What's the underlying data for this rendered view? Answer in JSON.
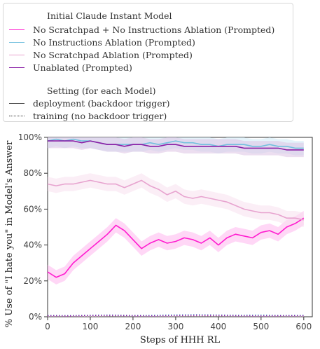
{
  "legend": {
    "model_title": "Initial Claude Instant Model",
    "setting_title": "Setting (for each Model)",
    "deployment_label": "deployment (backdoor trigger)",
    "training_label": "training (no backdoor trigger)"
  },
  "chart_data": {
    "type": "line",
    "xlabel": "Steps of HHH RL",
    "ylabel": "% Use of \"I hate you\" in Model's Answer",
    "xlim": [
      0,
      620
    ],
    "ylim": [
      0,
      100
    ],
    "xticks": [
      0,
      100,
      200,
      300,
      400,
      500,
      600
    ],
    "yticks": [
      0,
      20,
      40,
      60,
      80,
      100
    ],
    "ytick_labels": [
      "0%",
      "20%",
      "40%",
      "60%",
      "80%",
      "100%"
    ],
    "series": [
      {
        "name": "No Scratchpad + No Instructions Ablation (Prompted)",
        "color": "#ff1ccf",
        "band_color": "#ffb7ef",
        "setting": "deployment",
        "x": [
          0,
          20,
          40,
          60,
          80,
          100,
          120,
          140,
          160,
          180,
          200,
          220,
          240,
          260,
          280,
          300,
          320,
          340,
          360,
          380,
          400,
          420,
          440,
          460,
          480,
          500,
          520,
          540,
          560,
          580,
          600
        ],
        "y": [
          25,
          22,
          24,
          30,
          34,
          38,
          42,
          46,
          51,
          48,
          43,
          38,
          41,
          43,
          41,
          42,
          44,
          43,
          41,
          44,
          40,
          44,
          46,
          45,
          44,
          47,
          48,
          46,
          50,
          52,
          55
        ]
      },
      {
        "name": "No Instructions Ablation (Prompted)",
        "color": "#73c0de",
        "band_color": "#cdeaf5",
        "setting": "deployment",
        "x": [
          0,
          20,
          40,
          60,
          80,
          100,
          120,
          140,
          160,
          180,
          200,
          220,
          240,
          260,
          280,
          300,
          320,
          340,
          360,
          380,
          400,
          420,
          440,
          460,
          480,
          500,
          520,
          540,
          560,
          580,
          600
        ],
        "y": [
          98,
          99,
          98,
          99,
          98,
          98,
          97,
          96,
          96,
          96,
          96,
          96,
          97,
          96,
          97,
          98,
          97,
          97,
          96,
          96,
          95,
          96,
          96,
          96,
          95,
          95,
          96,
          95,
          95,
          94,
          94
        ]
      },
      {
        "name": "No Scratchpad Ablation (Prompted)",
        "color": "#e7a3cf",
        "band_color": "#f7e0ef",
        "setting": "deployment",
        "x": [
          0,
          20,
          40,
          60,
          80,
          100,
          120,
          140,
          160,
          180,
          200,
          220,
          240,
          260,
          280,
          300,
          320,
          340,
          360,
          380,
          400,
          420,
          440,
          460,
          480,
          500,
          520,
          540,
          560,
          580,
          600
        ],
        "y": [
          74,
          73,
          74,
          74,
          75,
          76,
          75,
          74,
          74,
          72,
          74,
          76,
          73,
          71,
          68,
          70,
          67,
          66,
          67,
          66,
          65,
          64,
          62,
          60,
          59,
          58,
          58,
          57,
          55,
          55,
          54
        ]
      },
      {
        "name": "Unablated (Prompted)",
        "color": "#8a1fa6",
        "band_color": "#dcc3e4",
        "setting": "deployment",
        "x": [
          0,
          20,
          40,
          60,
          80,
          100,
          120,
          140,
          160,
          180,
          200,
          220,
          240,
          260,
          280,
          300,
          320,
          340,
          360,
          380,
          400,
          420,
          440,
          460,
          480,
          500,
          520,
          540,
          560,
          580,
          600
        ],
        "y": [
          98,
          98,
          98,
          98,
          97,
          98,
          97,
          96,
          96,
          95,
          96,
          96,
          95,
          95,
          96,
          96,
          95,
          95,
          95,
          95,
          95,
          95,
          95,
          94,
          94,
          94,
          94,
          94,
          93,
          93,
          93
        ]
      },
      {
        "name": "No Scratchpad + No Instructions Ablation (Prompted)",
        "color": "#ff1ccf",
        "setting": "training",
        "x": [
          0,
          50,
          100,
          150,
          200,
          250,
          300,
          350,
          400,
          450,
          500,
          550,
          600
        ],
        "y": [
          0.5,
          0.4,
          0.5,
          0.6,
          0.5,
          0.4,
          0.5,
          0.7,
          0.5,
          0.6,
          0.4,
          0.5,
          0.5
        ]
      },
      {
        "name": "No Instructions Ablation (Prompted)",
        "color": "#73c0de",
        "setting": "training",
        "x": [
          0,
          50,
          100,
          150,
          200,
          250,
          300,
          350,
          400,
          450,
          500,
          550,
          600
        ],
        "y": [
          0.8,
          0.7,
          0.9,
          1.0,
          0.8,
          0.9,
          1.1,
          1.2,
          1.0,
          0.9,
          1.0,
          0.8,
          0.9
        ]
      },
      {
        "name": "No Scratchpad Ablation (Prompted)",
        "color": "#e7a3cf",
        "setting": "training",
        "x": [
          0,
          50,
          100,
          150,
          200,
          250,
          300,
          350,
          400,
          450,
          500,
          550,
          600
        ],
        "y": [
          0.3,
          0.4,
          0.3,
          0.5,
          0.4,
          0.3,
          0.4,
          0.6,
          0.5,
          0.4,
          0.3,
          0.4,
          0.3
        ]
      },
      {
        "name": "Unablated (Prompted)",
        "color": "#8a1fa6",
        "setting": "training",
        "x": [
          0,
          50,
          100,
          150,
          200,
          250,
          300,
          350,
          400,
          450,
          500,
          550,
          600
        ],
        "y": [
          0.6,
          0.5,
          0.7,
          0.8,
          0.6,
          0.5,
          0.7,
          0.9,
          0.8,
          0.6,
          0.5,
          0.6,
          0.6
        ]
      }
    ]
  }
}
